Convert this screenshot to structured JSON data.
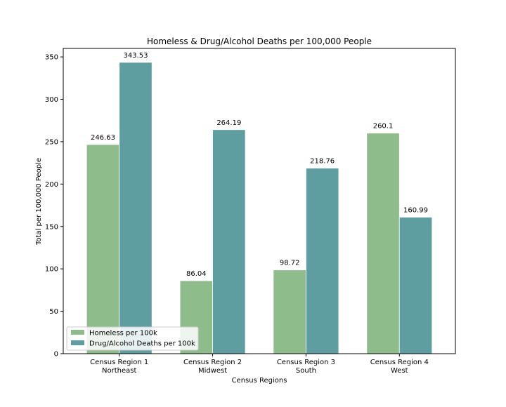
{
  "chart_data": {
    "type": "bar",
    "title": "Homeless & Drug/Alcohol Deaths per 100,000 People",
    "xlabel": "Census Regions",
    "ylabel": "Total per 100,000 People",
    "categories": [
      [
        "Census Region 1",
        "Northeast"
      ],
      [
        "Census Region 2",
        "Midwest"
      ],
      [
        "Census Region 3",
        "South"
      ],
      [
        "Census Region 4",
        "West"
      ]
    ],
    "series": [
      {
        "name": "Homeless per 100k",
        "color": "#8fbc8b",
        "values": [
          246.63,
          86.04,
          98.72,
          260.1
        ],
        "labels": [
          "246.63",
          "86.04",
          "98.72",
          "260.1"
        ]
      },
      {
        "name": "Drug/Alcohol Deaths per 100k",
        "color": "#5f9ea0",
        "values": [
          343.53,
          264.19,
          218.76,
          160.99
        ],
        "labels": [
          "343.53",
          "264.19",
          "218.76",
          "160.99"
        ]
      }
    ],
    "ylim": [
      0,
      360
    ],
    "yticks": [
      0,
      50,
      100,
      150,
      200,
      250,
      300,
      350
    ],
    "grid": false,
    "legend_position": "lower-left"
  }
}
